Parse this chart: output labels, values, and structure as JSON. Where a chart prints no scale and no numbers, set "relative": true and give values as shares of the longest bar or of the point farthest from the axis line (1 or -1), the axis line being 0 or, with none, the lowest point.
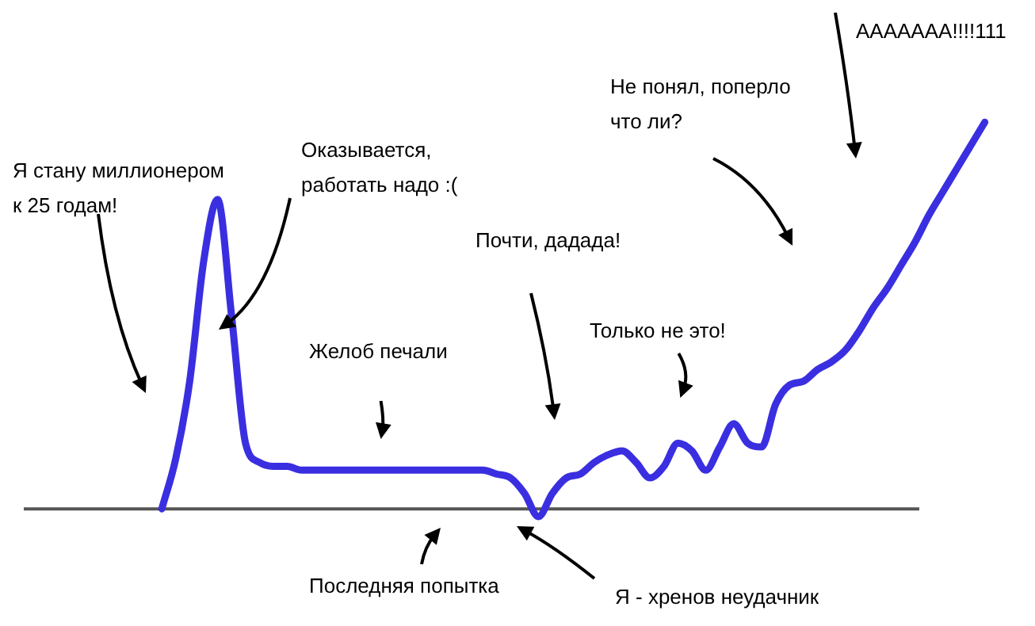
{
  "chart_data": {
    "type": "line",
    "relative": true,
    "color": "#3a2fe0",
    "categories": [
      null,
      null,
      null,
      null,
      null,
      null,
      null,
      null,
      null,
      null,
      null,
      null,
      null,
      null,
      null,
      null,
      null,
      null,
      null,
      null,
      null,
      null,
      null,
      null,
      null,
      null,
      null,
      null,
      null,
      null,
      null,
      null,
      null,
      null,
      null,
      null,
      null,
      null,
      null,
      null,
      null,
      null,
      null,
      null,
      null,
      null,
      null,
      null,
      null,
      null,
      null,
      null,
      null,
      null,
      null,
      null,
      null,
      null,
      null,
      null
    ],
    "values": [
      0,
      0.13,
      0.33,
      0.64,
      0.8,
      0.5,
      0.17,
      0.12,
      0.11,
      0.11,
      0.1,
      0.1,
      0.1,
      0.1,
      0.1,
      0.1,
      0.1,
      0.1,
      0.1,
      0.1,
      0.1,
      0.1,
      0.1,
      0.1,
      0.09,
      0.08,
      0.04,
      -0.02,
      0.04,
      0.08,
      0.09,
      0.12,
      0.14,
      0.15,
      0.12,
      0.08,
      0.11,
      0.17,
      0.15,
      0.1,
      0.16,
      0.22,
      0.17,
      0.16,
      0.27,
      0.32,
      0.33,
      0.36,
      0.38,
      0.41,
      0.46,
      0.52,
      0.57,
      0.63,
      0.69,
      0.76,
      0.82,
      0.88,
      0.94,
      1
    ],
    "annotations": [
      "Я стану миллионером\nк 25 годам!",
      "Оказывается,\nработать надо :(",
      "Желоб печали",
      "Почти, дадада!",
      "Только не это!",
      "Не понял, поперло\nчто ли?",
      "ААААААА!!!!111",
      "Последняя попытка",
      "Я - хренов неудачник"
    ]
  }
}
